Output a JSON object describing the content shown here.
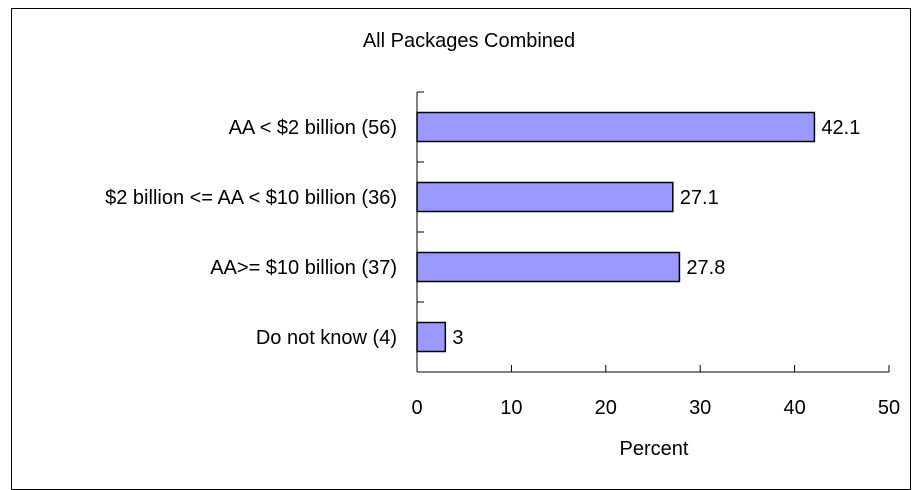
{
  "chart_data": {
    "type": "bar",
    "orientation": "horizontal",
    "title": "All Packages Combined",
    "xlabel": "Percent",
    "ylabel": "",
    "categories": [
      "AA < $2 billion  (56)",
      "$2 billion <= AA < $10 billion  (36)",
      "AA>= $10 billion  (37)",
      "Do not know  (4)"
    ],
    "values": [
      42.1,
      27.1,
      27.8,
      3
    ],
    "data_labels": [
      "42.1",
      "27.1",
      "27.8",
      "3"
    ],
    "xlim": [
      0,
      50
    ],
    "x_ticks": [
      0,
      10,
      20,
      30,
      40,
      50
    ],
    "x_tick_labels": [
      "0",
      "10",
      "20",
      "30",
      "40",
      "50"
    ],
    "grid": false,
    "legend": "none",
    "bar_color": "#9999ff",
    "bar_stroke": "#000000"
  }
}
